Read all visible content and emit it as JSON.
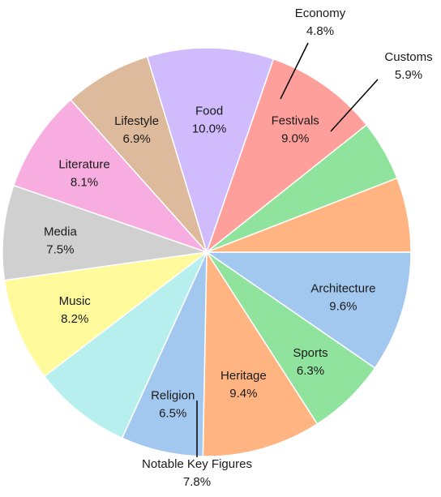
{
  "chart_data": {
    "type": "pie",
    "title": "",
    "slices": [
      {
        "label": "Architecture",
        "value": 9.6,
        "display": "9.6%",
        "color": "#a3c8f0"
      },
      {
        "label": "Sports",
        "value": 6.3,
        "display": "6.3%",
        "color": "#8fe39c"
      },
      {
        "label": "Heritage",
        "value": 9.4,
        "display": "9.4%",
        "color": "#ffb482"
      },
      {
        "label": "Religion",
        "value": 6.5,
        "display": "6.5%",
        "color": "#a3c8f0"
      },
      {
        "label": "Notable Key Figures",
        "value": 7.8,
        "display": "7.8%",
        "color": "#b7efee"
      },
      {
        "label": "Music",
        "value": 8.2,
        "display": "8.2%",
        "color": "#fffa9c"
      },
      {
        "label": "Media",
        "value": 7.5,
        "display": "7.5%",
        "color": "#d0d0d0"
      },
      {
        "label": "Literature",
        "value": 8.1,
        "display": "8.1%",
        "color": "#f8ade0"
      },
      {
        "label": "Lifestyle",
        "value": 6.9,
        "display": "6.9%",
        "color": "#deba9c"
      },
      {
        "label": "Food",
        "value": 10.0,
        "display": "10.0%",
        "color": "#d0bbfd"
      },
      {
        "label": "Festivals",
        "value": 9.0,
        "display": "9.0%",
        "color": "#ff9f9b"
      },
      {
        "label": "Economy",
        "value": 4.8,
        "display": "4.8%",
        "color": "#8fe39c"
      },
      {
        "label": "Customs",
        "value": 5.9,
        "display": "5.9%",
        "color": "#ffb482"
      }
    ],
    "start": "3 o'clock",
    "direction": "clockwise",
    "legend": "none",
    "slice_border_color": "#ffffff"
  }
}
